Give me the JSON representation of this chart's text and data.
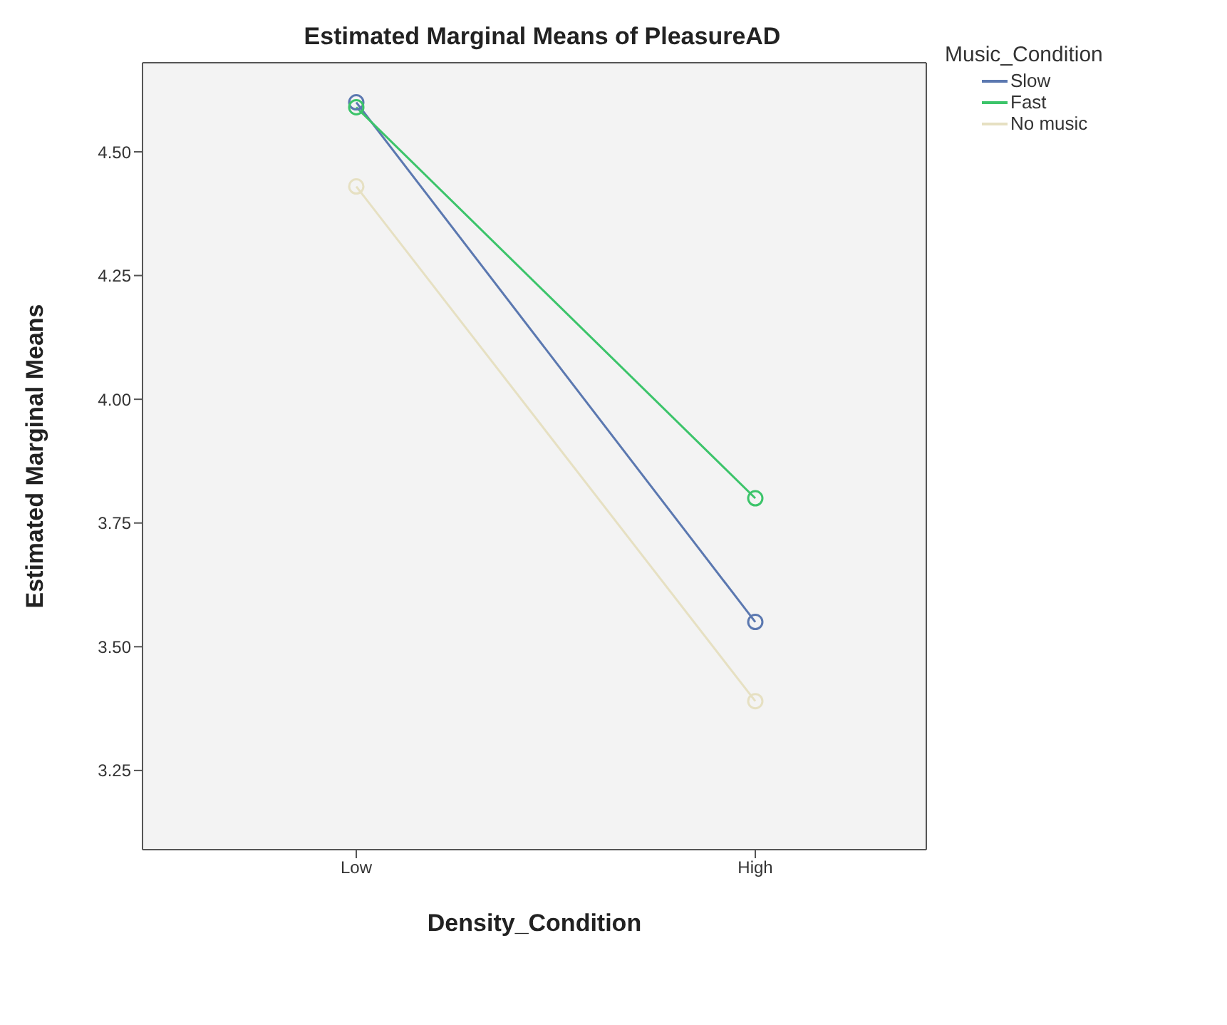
{
  "chart_data": {
    "type": "line",
    "title": "Estimated Marginal Means of PleasureAD",
    "xlabel": "Density_Condition",
    "ylabel": "Estimated Marginal Means",
    "legend_title": "Music_Condition",
    "categories": [
      "Low",
      "High"
    ],
    "series": [
      {
        "name": "Slow",
        "color": "#5b78b0",
        "values": [
          4.6,
          3.55
        ]
      },
      {
        "name": "Fast",
        "color": "#3cc46a",
        "values": [
          4.59,
          3.8
        ]
      },
      {
        "name": "No music",
        "color": "#e6e0c2",
        "values": [
          4.43,
          3.39
        ]
      }
    ],
    "ylim": [
      3.09,
      4.68
    ],
    "yticks": [
      {
        "value": 3.25,
        "label": "3.25"
      },
      {
        "value": 3.5,
        "label": "3.50"
      },
      {
        "value": 3.75,
        "label": "3.75"
      },
      {
        "value": 4,
        "label": "4.00"
      },
      {
        "value": 4.25,
        "label": "4.25"
      },
      {
        "value": 4.5,
        "label": "4.50"
      }
    ],
    "grid": false,
    "legend": "top right",
    "marker": "circle",
    "line_style": "solid"
  }
}
